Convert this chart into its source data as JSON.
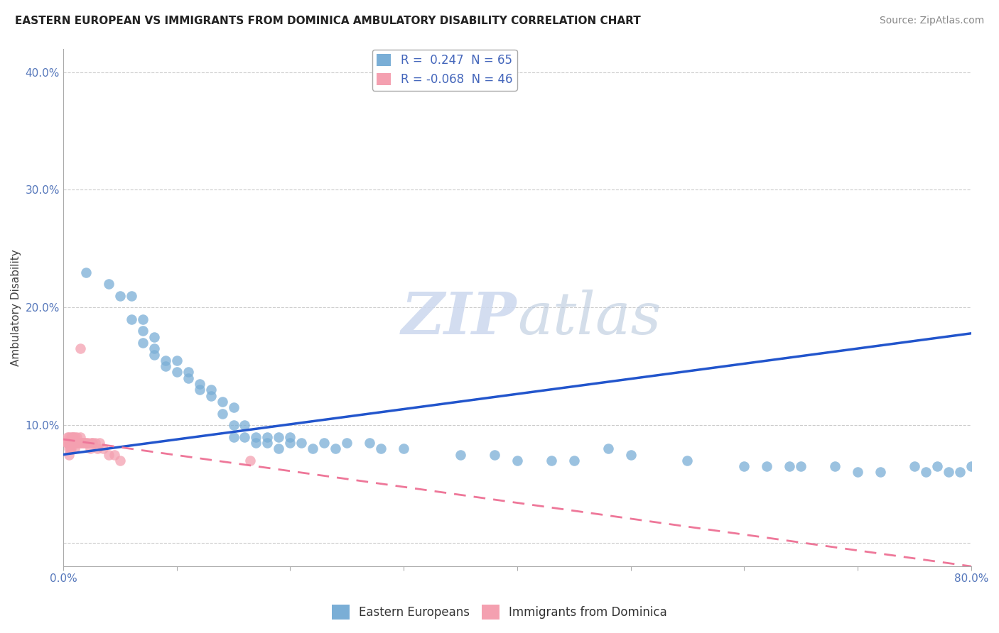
{
  "title": "EASTERN EUROPEAN VS IMMIGRANTS FROM DOMINICA AMBULATORY DISABILITY CORRELATION CHART",
  "source": "Source: ZipAtlas.com",
  "ylabel": "Ambulatory Disability",
  "xlim": [
    0.0,
    0.8
  ],
  "ylim": [
    -0.02,
    0.42
  ],
  "yticks": [
    0.0,
    0.1,
    0.2,
    0.3,
    0.4
  ],
  "ytick_labels": [
    "",
    "10.0%",
    "20.0%",
    "30.0%",
    "40.0%"
  ],
  "series1_color": "#7aaed6",
  "series2_color": "#f4a0b0",
  "trendline1_color": "#2255cc",
  "trendline2_color": "#ee7799",
  "background_color": "#ffffff",
  "grid_color": "#cccccc",
  "ee_x": [
    0.02,
    0.04,
    0.05,
    0.06,
    0.06,
    0.07,
    0.07,
    0.07,
    0.08,
    0.08,
    0.08,
    0.09,
    0.09,
    0.1,
    0.1,
    0.11,
    0.11,
    0.12,
    0.12,
    0.13,
    0.13,
    0.14,
    0.14,
    0.15,
    0.15,
    0.15,
    0.16,
    0.16,
    0.17,
    0.17,
    0.18,
    0.18,
    0.19,
    0.19,
    0.2,
    0.2,
    0.21,
    0.22,
    0.23,
    0.24,
    0.25,
    0.27,
    0.28,
    0.3,
    0.35,
    0.4,
    0.45,
    0.5,
    0.55,
    0.6,
    0.62,
    0.64,
    0.65,
    0.7,
    0.72,
    0.75,
    0.76,
    0.77,
    0.78,
    0.79,
    0.8,
    0.48,
    0.38,
    0.43,
    0.68
  ],
  "ee_y": [
    0.23,
    0.22,
    0.21,
    0.21,
    0.19,
    0.19,
    0.18,
    0.17,
    0.175,
    0.165,
    0.16,
    0.155,
    0.15,
    0.155,
    0.145,
    0.145,
    0.14,
    0.135,
    0.13,
    0.13,
    0.125,
    0.12,
    0.11,
    0.115,
    0.1,
    0.09,
    0.1,
    0.09,
    0.09,
    0.085,
    0.085,
    0.09,
    0.09,
    0.08,
    0.085,
    0.09,
    0.085,
    0.08,
    0.085,
    0.08,
    0.085,
    0.085,
    0.08,
    0.08,
    0.075,
    0.07,
    0.07,
    0.075,
    0.07,
    0.065,
    0.065,
    0.065,
    0.065,
    0.06,
    0.06,
    0.065,
    0.06,
    0.065,
    0.06,
    0.06,
    0.065,
    0.08,
    0.075,
    0.07,
    0.065
  ],
  "dom_x": [
    0.003,
    0.004,
    0.004,
    0.005,
    0.005,
    0.005,
    0.005,
    0.006,
    0.006,
    0.007,
    0.007,
    0.007,
    0.008,
    0.008,
    0.008,
    0.009,
    0.009,
    0.01,
    0.01,
    0.01,
    0.01,
    0.011,
    0.012,
    0.012,
    0.013,
    0.014,
    0.015,
    0.015,
    0.016,
    0.017,
    0.018,
    0.019,
    0.02,
    0.022,
    0.024,
    0.025,
    0.026,
    0.028,
    0.03,
    0.032,
    0.035,
    0.04,
    0.045,
    0.05,
    0.015,
    0.165
  ],
  "dom_y": [
    0.085,
    0.09,
    0.085,
    0.09,
    0.085,
    0.08,
    0.075,
    0.085,
    0.08,
    0.09,
    0.085,
    0.08,
    0.085,
    0.09,
    0.085,
    0.09,
    0.085,
    0.085,
    0.08,
    0.09,
    0.085,
    0.085,
    0.09,
    0.085,
    0.085,
    0.085,
    0.09,
    0.085,
    0.085,
    0.085,
    0.085,
    0.085,
    0.085,
    0.085,
    0.08,
    0.085,
    0.085,
    0.085,
    0.08,
    0.085,
    0.08,
    0.075,
    0.075,
    0.07,
    0.165,
    0.07
  ],
  "trendline1_x0": 0.0,
  "trendline1_y0": 0.075,
  "trendline1_x1": 0.8,
  "trendline1_y1": 0.178,
  "trendline2_x0": 0.0,
  "trendline2_y0": 0.088,
  "trendline2_x1": 0.8,
  "trendline2_y1": -0.02,
  "title_fontsize": 11,
  "source_fontsize": 10,
  "axis_label_fontsize": 11,
  "tick_fontsize": 11,
  "legend_fontsize": 12
}
